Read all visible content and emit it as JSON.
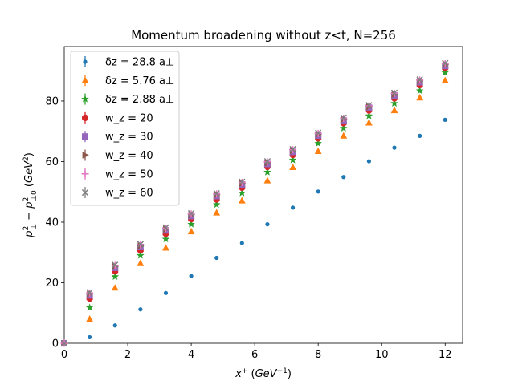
{
  "chart_data": {
    "type": "scatter",
    "title": "Momentum broadening without z<t, N=256",
    "xlabel": "x⁺ (GeV⁻¹)",
    "ylabel": "p⊥² − p⊥₀² (GeV²)",
    "xlim": [
      0,
      12.55
    ],
    "ylim": [
      0,
      98
    ],
    "xticks": [
      0,
      2,
      4,
      6,
      8,
      10,
      12
    ],
    "yticks": [
      0,
      20,
      40,
      60,
      80
    ],
    "legend_position": "top-left",
    "grid": false,
    "x": [
      0,
      0.8,
      1.6,
      2.4,
      3.2,
      4.0,
      4.8,
      5.6,
      6.4,
      7.2,
      8.0,
      8.8,
      9.6,
      10.4,
      11.2,
      12.0
    ],
    "series": [
      {
        "name": "δz = 28.8 a⊥",
        "marker": "circle-small",
        "color": "#1f77b4",
        "values": [
          0,
          2.0,
          5.9,
          11.2,
          16.6,
          22.2,
          28.2,
          33.1,
          39.3,
          44.8,
          50.1,
          54.9,
          60.1,
          64.6,
          68.5,
          73.8
        ]
      },
      {
        "name": "δz = 5.76 a⊥",
        "marker": "triangle-up",
        "color": "#ff7f0e",
        "values": [
          0,
          8.0,
          18.3,
          26.4,
          31.5,
          36.9,
          43.1,
          47.1,
          53.7,
          58.1,
          63.4,
          68.5,
          72.8,
          76.9,
          81.1,
          86.8
        ]
      },
      {
        "name": "δz = 2.88 a⊥",
        "marker": "star",
        "color": "#2ca02c",
        "values": [
          0,
          11.8,
          22.0,
          29.0,
          34.4,
          39.3,
          45.8,
          49.6,
          56.5,
          60.5,
          66.0,
          71.0,
          75.1,
          79.2,
          83.4,
          89.4
        ]
      },
      {
        "name": "w_z = 20",
        "marker": "octagon",
        "color": "#d62728",
        "values": [
          0,
          14.8,
          23.8,
          30.7,
          36.2,
          41.0,
          47.5,
          51.4,
          58.3,
          62.2,
          67.7,
          72.7,
          76.9,
          80.9,
          85.3,
          90.9
        ]
      },
      {
        "name": "w_z = 30",
        "marker": "square-cut",
        "color": "#9467bd",
        "values": [
          0,
          15.8,
          24.9,
          31.8,
          37.3,
          42.0,
          48.6,
          52.4,
          59.2,
          63.2,
          68.6,
          73.6,
          77.8,
          81.8,
          86.2,
          91.6
        ]
      },
      {
        "name": "w_z = 40",
        "marker": "triangle-right",
        "color": "#8c564b",
        "values": [
          0,
          16.3,
          25.4,
          32.2,
          37.7,
          42.4,
          49.0,
          52.8,
          59.6,
          63.6,
          69.0,
          74.0,
          78.1,
          82.2,
          86.6,
          92.0
        ]
      },
      {
        "name": "w_z = 50",
        "marker": "plus",
        "color": "#e377c2",
        "values": [
          0,
          16.6,
          25.7,
          32.5,
          38.0,
          42.7,
          49.3,
          53.1,
          59.9,
          63.9,
          69.3,
          74.3,
          78.4,
          82.5,
          86.9,
          92.3
        ]
      },
      {
        "name": "w_z = 60",
        "marker": "x",
        "color": "#7f7f7f",
        "values": [
          0,
          16.8,
          25.9,
          32.7,
          38.2,
          42.9,
          49.5,
          53.3,
          60.1,
          64.1,
          69.5,
          74.5,
          78.6,
          82.7,
          87.1,
          92.5
        ]
      }
    ]
  }
}
